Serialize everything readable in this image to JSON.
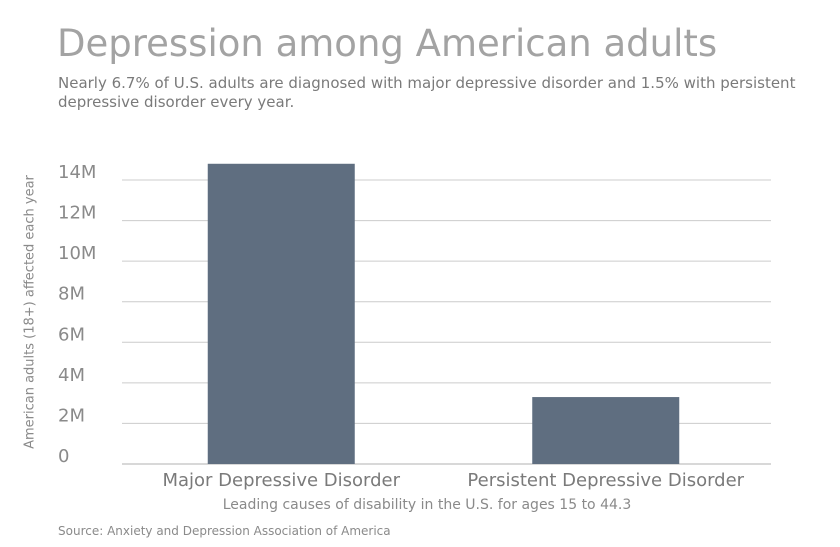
{
  "header": {
    "title": "Depression among American adults",
    "subtitle": "Nearly 6.7% of U.S. adults are diagnosed with major depressive disorder and 1.5% with persistent depressive disorder every year."
  },
  "footer": {
    "source": "Source: Anxiety and Depression Association of America"
  },
  "colors": {
    "bar": "#5f6e80",
    "grid": "#cccccc",
    "title": "#a3a3a3"
  },
  "chart_data": {
    "type": "bar",
    "title": "Depression among American adults",
    "xlabel": "Leading causes of disability in the U.S. for ages 15 to 44.3",
    "ylabel": "American adults (18+) affected each year",
    "categories": [
      "Major Depressive Disorder",
      "Persistent Depressive Disorder"
    ],
    "values": [
      14800000,
      3300000
    ],
    "ylim": [
      0,
      14000000
    ],
    "yticks": [
      0,
      2000000,
      4000000,
      6000000,
      8000000,
      10000000,
      12000000,
      14000000
    ],
    "ytick_labels": [
      "0",
      "2M",
      "4M",
      "6M",
      "8M",
      "10M",
      "12M",
      "14M"
    ],
    "grid": true,
    "legend": "none"
  }
}
